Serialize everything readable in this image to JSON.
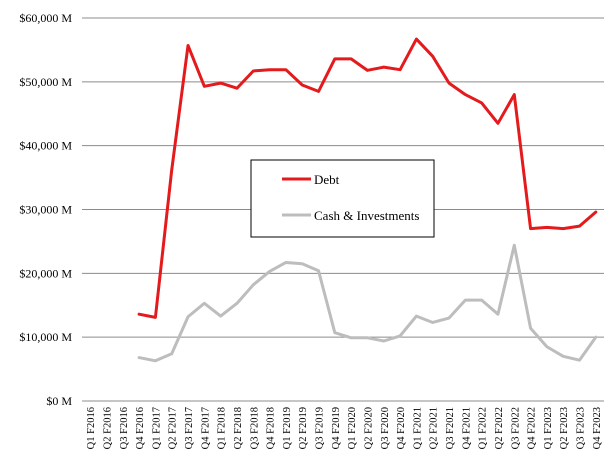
{
  "chart_data": {
    "type": "line",
    "title": "",
    "xlabel": "",
    "ylabel": "",
    "ylim": [
      0,
      60000
    ],
    "y_ticks": [
      {
        "value": 0,
        "label": "$0 M"
      },
      {
        "value": 10000,
        "label": "$10,000 M"
      },
      {
        "value": 20000,
        "label": "$20,000 M"
      },
      {
        "value": 30000,
        "label": "$30,000 M"
      },
      {
        "value": 40000,
        "label": "$40,000 M"
      },
      {
        "value": 50000,
        "label": "$50,000 M"
      },
      {
        "value": 60000,
        "label": "$60,000 M"
      }
    ],
    "grid": "horizontal",
    "legend_position": "center",
    "categories": [
      "Q1 F2016",
      "Q2 F2016",
      "Q3 F2016",
      "Q4 F2016",
      "Q1 F2017",
      "Q2 F2017",
      "Q3 F2017",
      "Q4 F2017",
      "Q1 F2018",
      "Q2 F2018",
      "Q3 F2018",
      "Q4 F2018",
      "Q1 F2019",
      "Q2 F2019",
      "Q3 F2019",
      "Q4 F2019",
      "Q1 F2020",
      "Q2 F2020",
      "Q3 F2020",
      "Q4 F2020",
      "Q1 F2021",
      "Q2 F2021",
      "Q3 F2021",
      "Q4 F2021",
      "Q1 F2022",
      "Q2 F2022",
      "Q3 F2022",
      "Q4 F2022",
      "Q1 F2023",
      "Q2 F2023",
      "Q3 F2023",
      "Q4 F2023"
    ],
    "series": [
      {
        "name": "Debt",
        "color": "#e41a1c",
        "values": [
          null,
          null,
          null,
          13600,
          13100,
          36200,
          55700,
          49300,
          49800,
          49000,
          51700,
          51900,
          51900,
          49500,
          48500,
          53600,
          53600,
          51800,
          52300,
          51900,
          56700,
          54000,
          49800,
          48000,
          46700,
          43500,
          48000,
          27000,
          27200,
          27000,
          27400,
          29600
        ]
      },
      {
        "name": "Cash & Investments",
        "color": "#bdbdbd",
        "values": [
          null,
          null,
          null,
          6800,
          6300,
          7400,
          13200,
          15300,
          13300,
          15300,
          18200,
          20300,
          21700,
          21500,
          20400,
          10700,
          9900,
          9900,
          9400,
          10200,
          13300,
          12300,
          13000,
          15800,
          15800,
          13600,
          24400,
          11400,
          8500,
          7000,
          6400,
          10000
        ]
      }
    ]
  }
}
